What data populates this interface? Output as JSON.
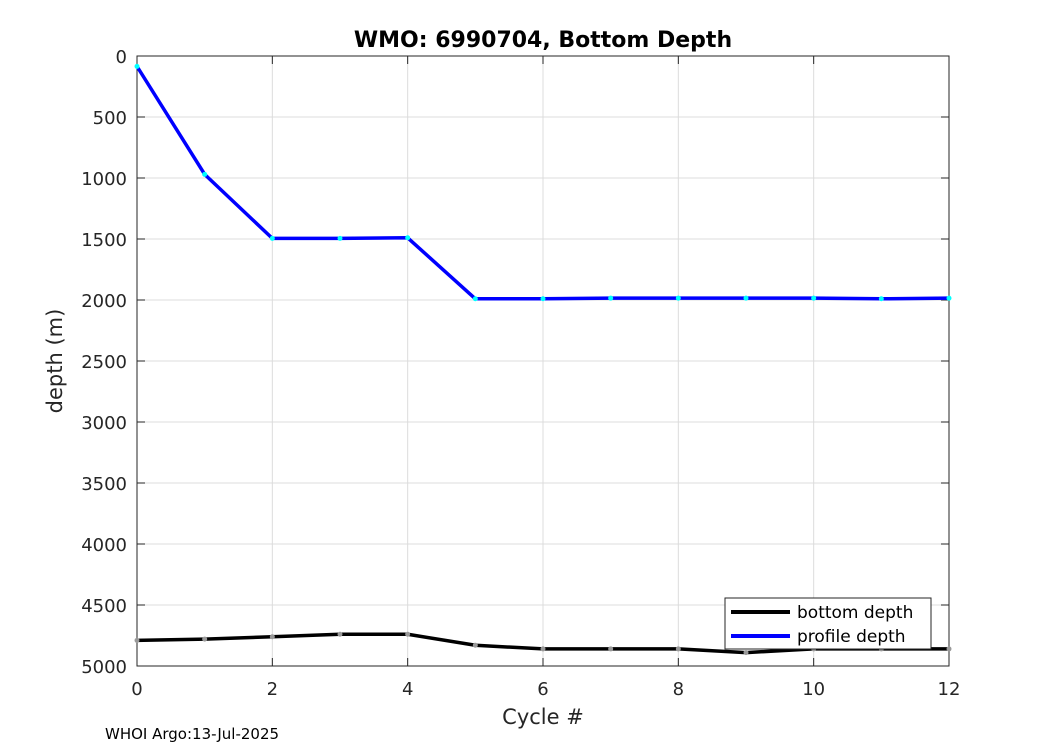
{
  "chart_data": {
    "type": "line",
    "title": "WMO: 6990704, Bottom Depth",
    "xlabel": "Cycle #",
    "ylabel": "depth (m)",
    "xlim": [
      0,
      12
    ],
    "ylim": [
      0,
      5000
    ],
    "y_reversed": true,
    "grid": true,
    "x_ticks": [
      0,
      2,
      4,
      6,
      8,
      10,
      12
    ],
    "y_ticks": [
      0,
      500,
      1000,
      1500,
      2000,
      2500,
      3000,
      3500,
      4000,
      4500,
      5000
    ],
    "legend_position": "bottom-right",
    "series": [
      {
        "name": "bottom depth",
        "color": "#000000",
        "marker_color": "#999999",
        "x": [
          0,
          1,
          2,
          3,
          4,
          5,
          6,
          7,
          8,
          9,
          10,
          11,
          12
        ],
        "values": [
          4790,
          4780,
          4760,
          4740,
          4740,
          4830,
          4860,
          4860,
          4860,
          4890,
          4860,
          4860,
          4860
        ]
      },
      {
        "name": "profile depth",
        "color": "#0000ff",
        "marker_color": "#00ffff",
        "x": [
          0,
          1,
          2,
          3,
          4,
          5,
          6,
          7,
          8,
          9,
          10,
          11,
          12
        ],
        "values": [
          85,
          970,
          1495,
          1495,
          1490,
          1990,
          1990,
          1985,
          1985,
          1985,
          1985,
          1990,
          1985
        ]
      }
    ]
  },
  "footer_text": "WHOI Argo:13-Jul-2025"
}
